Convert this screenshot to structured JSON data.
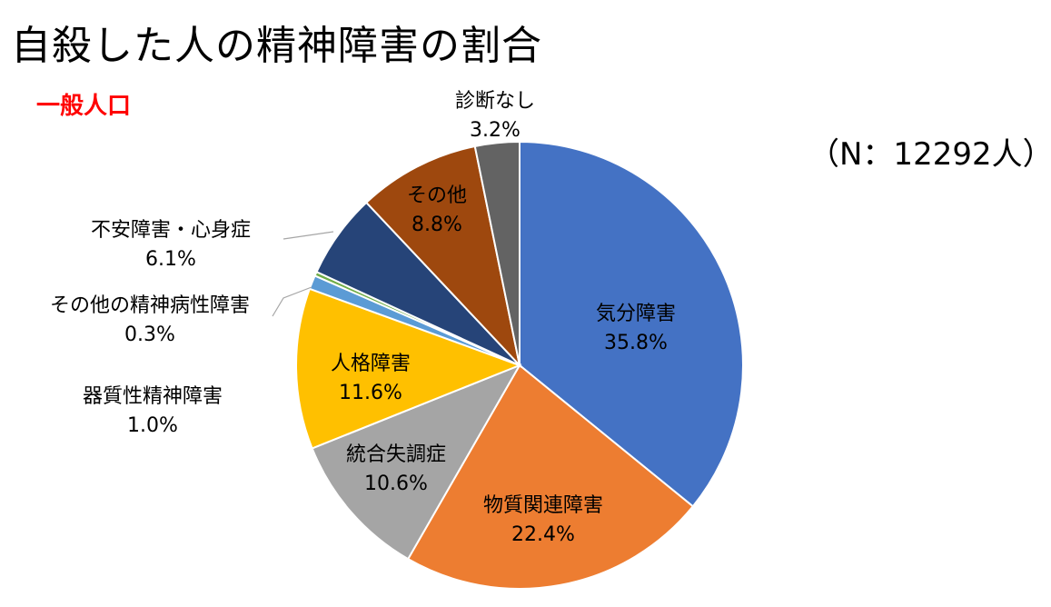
{
  "slide": {
    "title": "自殺した人の精神障害の割合",
    "subtitle": "一般人口",
    "sample_size": "（N：12292人）"
  },
  "colors": {
    "mood": "#4472c4",
    "substance": "#ed7d31",
    "schizophrenia": "#a5a5a5",
    "personality": "#ffc000",
    "organic": "#5b9bd5",
    "other_mental": "#70ad47",
    "anxiety": "#264478",
    "other": "#9e480e",
    "none": "#636363",
    "subtitle": "#ff0000"
  },
  "chart_data": {
    "type": "pie",
    "start": "12 o'clock, clockwise",
    "slices": [
      {
        "key": "mood",
        "name": "気分障害",
        "value": 35.8,
        "label": "35.8%",
        "label_inside": true
      },
      {
        "key": "substance",
        "name": "物質関連障害",
        "value": 22.4,
        "label": "22.4%",
        "label_inside": true
      },
      {
        "key": "schizophrenia",
        "name": "統合失調症",
        "value": 10.6,
        "label": "10.6%",
        "label_inside": true
      },
      {
        "key": "personality",
        "name": "人格障害",
        "value": 11.6,
        "label": "11.6%",
        "label_inside": true
      },
      {
        "key": "organic",
        "name": "器質性精神障害",
        "value": 1.0,
        "label": "1.0%",
        "label_inside": false
      },
      {
        "key": "other_mental",
        "name": "その他の精神病性障害",
        "value": 0.3,
        "label": "0.3%",
        "label_inside": false
      },
      {
        "key": "anxiety",
        "name": "不安障害・心身症",
        "value": 6.1,
        "label": "6.1%",
        "label_inside": false
      },
      {
        "key": "other",
        "name": "その他",
        "value": 8.8,
        "label": "8.8%",
        "label_inside": true
      },
      {
        "key": "none",
        "name": "診断なし",
        "value": 3.2,
        "label": "3.2%",
        "label_inside": false
      }
    ]
  }
}
